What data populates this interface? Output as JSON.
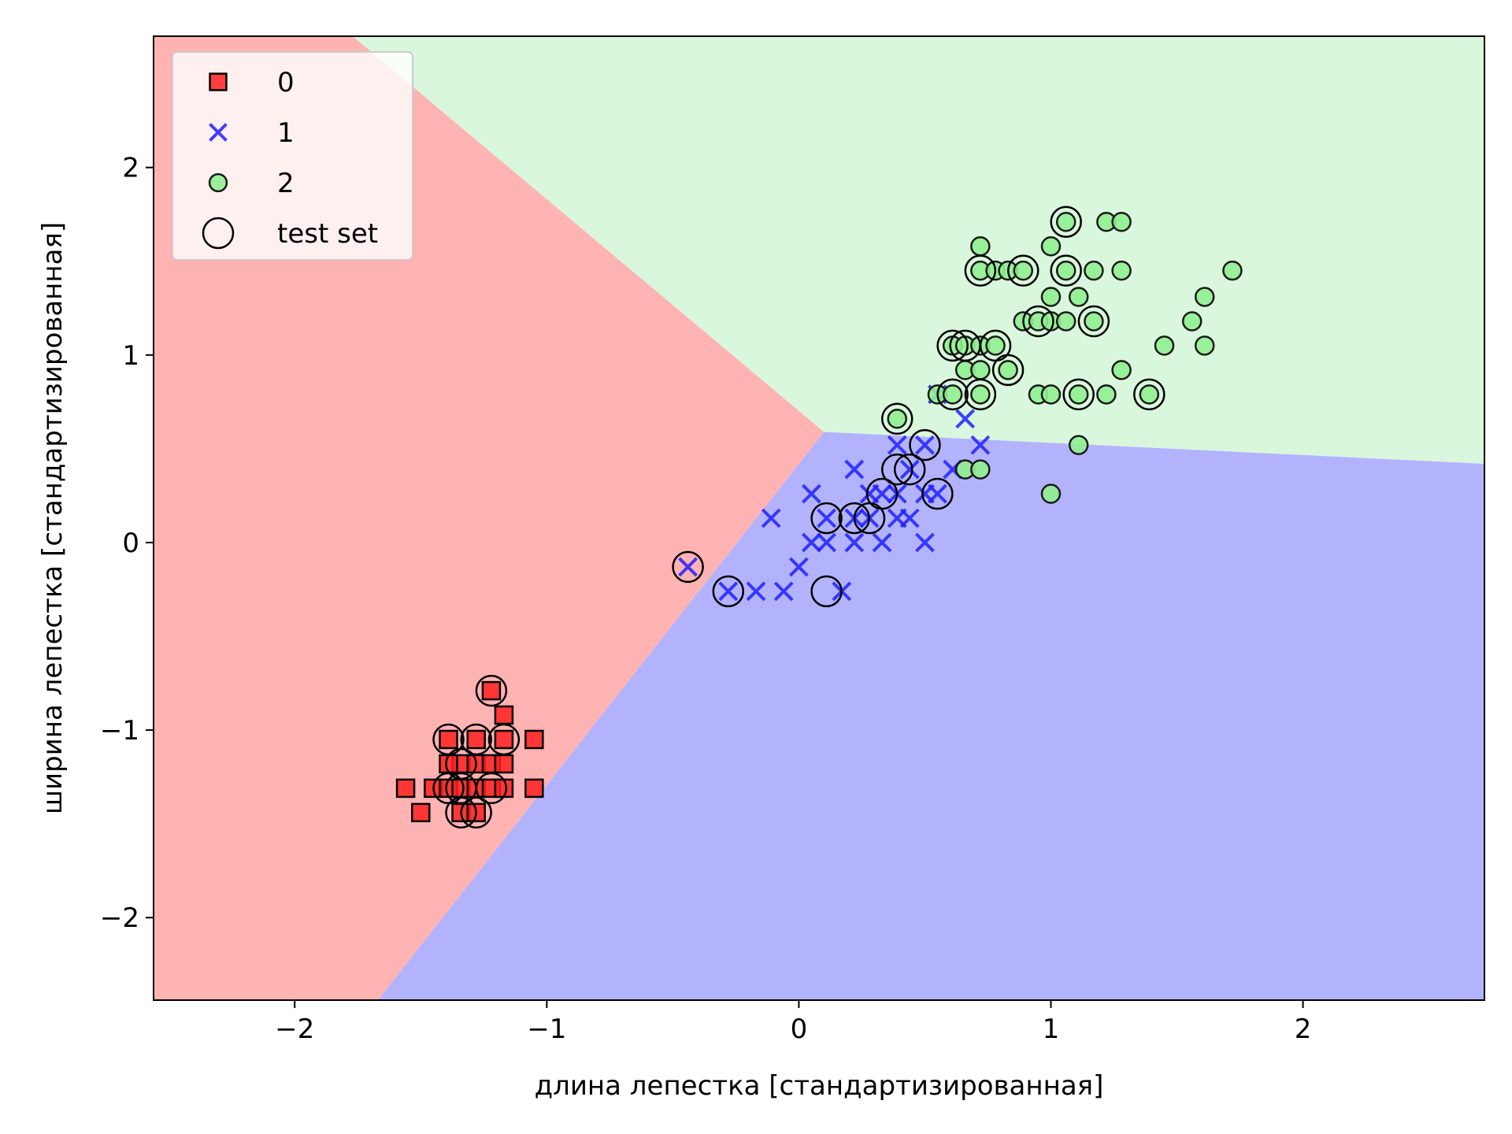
{
  "chart_data": {
    "type": "scatter",
    "title": "",
    "xlabel": "длина лепестка [стандартизированная]",
    "ylabel": "ширина лепестка [стандартизированная]",
    "xlim": [
      -2.56,
      2.72
    ],
    "ylim": [
      -2.44,
      2.7
    ],
    "xticks": [
      -2,
      -1,
      0,
      1,
      2
    ],
    "yticks": [
      -2,
      -1,
      0,
      1,
      2
    ],
    "xtick_labels": [
      "−2",
      "−1",
      "0",
      "1",
      "2"
    ],
    "ytick_labels": [
      "−2",
      "−1",
      "0",
      "1",
      "2"
    ],
    "grid": false,
    "legend_position": "upper-left",
    "decision_regions": [
      {
        "class": "0",
        "color": "#ffb3b3",
        "polygon": [
          [
            -2.56,
            2.7
          ],
          [
            -1.77,
            2.7
          ],
          [
            0.1,
            0.59
          ],
          [
            -1.67,
            -2.44
          ],
          [
            -2.56,
            -2.44
          ]
        ]
      },
      {
        "class": "2",
        "color": "#d9f7dc",
        "polygon": [
          [
            -1.77,
            2.7
          ],
          [
            2.72,
            2.7
          ],
          [
            2.72,
            0.42
          ],
          [
            0.1,
            0.59
          ]
        ]
      },
      {
        "class": "1",
        "color": "#b3b3fd",
        "polygon": [
          [
            0.1,
            0.59
          ],
          [
            2.72,
            0.42
          ],
          [
            2.72,
            -2.44
          ],
          [
            -1.67,
            -2.44
          ]
        ]
      }
    ],
    "series": [
      {
        "name": "0",
        "marker": "square",
        "color": "#ff2020",
        "points": [
          [
            -1.39,
            -1.05
          ],
          [
            -1.28,
            -1.05
          ],
          [
            -1.17,
            -1.05
          ],
          [
            -1.05,
            -1.05
          ],
          [
            -1.22,
            -0.79
          ],
          [
            -1.17,
            -0.92
          ],
          [
            -1.34,
            -1.18
          ],
          [
            -1.39,
            -1.18
          ],
          [
            -1.28,
            -1.18
          ],
          [
            -1.22,
            -1.18
          ],
          [
            -1.17,
            -1.18
          ],
          [
            -1.56,
            -1.31
          ],
          [
            -1.45,
            -1.31
          ],
          [
            -1.39,
            -1.31
          ],
          [
            -1.34,
            -1.31
          ],
          [
            -1.28,
            -1.31
          ],
          [
            -1.22,
            -1.31
          ],
          [
            -1.17,
            -1.31
          ],
          [
            -1.05,
            -1.31
          ],
          [
            -1.5,
            -1.44
          ],
          [
            -1.34,
            -1.44
          ],
          [
            -1.28,
            -1.44
          ]
        ]
      },
      {
        "name": "1",
        "marker": "x",
        "color": "#2020ff",
        "points": [
          [
            -0.44,
            -0.13
          ],
          [
            -0.28,
            -0.26
          ],
          [
            -0.17,
            -0.26
          ],
          [
            -0.06,
            -0.26
          ],
          [
            0.17,
            -0.26
          ],
          [
            -0.11,
            0.13
          ],
          [
            0.0,
            -0.13
          ],
          [
            0.05,
            0.0
          ],
          [
            0.05,
            0.26
          ],
          [
            0.11,
            0.0
          ],
          [
            0.11,
            0.13
          ],
          [
            0.22,
            0.0
          ],
          [
            0.22,
            0.13
          ],
          [
            0.22,
            0.39
          ],
          [
            0.28,
            0.13
          ],
          [
            0.33,
            0.0
          ],
          [
            0.39,
            0.13
          ],
          [
            0.39,
            0.26
          ],
          [
            0.39,
            0.52
          ],
          [
            0.44,
            0.13
          ],
          [
            0.44,
            0.39
          ],
          [
            0.5,
            0.0
          ],
          [
            0.5,
            0.26
          ],
          [
            0.5,
            0.52
          ],
          [
            0.55,
            0.26
          ],
          [
            0.55,
            0.79
          ],
          [
            0.61,
            0.39
          ],
          [
            0.66,
            0.66
          ],
          [
            0.72,
            0.52
          ],
          [
            0.33,
            0.26
          ],
          [
            0.28,
            0.26
          ]
        ]
      },
      {
        "name": "2",
        "marker": "circle",
        "color": "#90ee90",
        "points": [
          [
            0.39,
            0.66
          ],
          [
            0.55,
            0.79
          ],
          [
            0.61,
            0.79
          ],
          [
            0.61,
            1.05
          ],
          [
            0.66,
            1.05
          ],
          [
            0.72,
            1.05
          ],
          [
            0.66,
            0.92
          ],
          [
            0.72,
            0.92
          ],
          [
            0.66,
            0.39
          ],
          [
            0.72,
            0.39
          ],
          [
            0.72,
            0.79
          ],
          [
            0.72,
            1.45
          ],
          [
            0.72,
            1.58
          ],
          [
            0.78,
            1.05
          ],
          [
            0.78,
            1.45
          ],
          [
            0.83,
            0.92
          ],
          [
            0.83,
            1.45
          ],
          [
            0.89,
            1.18
          ],
          [
            0.89,
            1.45
          ],
          [
            0.95,
            0.79
          ],
          [
            0.95,
            1.18
          ],
          [
            1.0,
            0.79
          ],
          [
            1.0,
            1.18
          ],
          [
            1.0,
            1.58
          ],
          [
            1.0,
            1.31
          ],
          [
            1.0,
            0.26
          ],
          [
            1.06,
            1.18
          ],
          [
            1.06,
            1.45
          ],
          [
            1.06,
            1.71
          ],
          [
            1.11,
            0.79
          ],
          [
            1.11,
            1.31
          ],
          [
            1.11,
            0.52
          ],
          [
            1.17,
            1.18
          ],
          [
            1.17,
            1.45
          ],
          [
            1.22,
            0.79
          ],
          [
            1.22,
            1.71
          ],
          [
            1.28,
            0.92
          ],
          [
            1.28,
            1.45
          ],
          [
            1.28,
            1.71
          ],
          [
            1.39,
            0.79
          ],
          [
            1.45,
            1.05
          ],
          [
            1.56,
            1.18
          ],
          [
            1.61,
            1.05
          ],
          [
            1.61,
            1.31
          ],
          [
            1.72,
            1.45
          ]
        ]
      }
    ],
    "test_set": {
      "name": "test set",
      "marker": "open-circle",
      "points": [
        [
          -1.22,
          -0.79
        ],
        [
          -1.39,
          -1.05
        ],
        [
          -1.28,
          -1.05
        ],
        [
          -1.17,
          -1.05
        ],
        [
          -1.34,
          -1.18
        ],
        [
          -1.39,
          -1.31
        ],
        [
          -1.34,
          -1.31
        ],
        [
          -1.22,
          -1.31
        ],
        [
          -1.34,
          -1.44
        ],
        [
          -1.28,
          -1.44
        ],
        [
          -0.44,
          -0.13
        ],
        [
          -0.28,
          -0.26
        ],
        [
          0.11,
          -0.26
        ],
        [
          0.11,
          0.13
        ],
        [
          0.22,
          0.13
        ],
        [
          0.28,
          0.13
        ],
        [
          0.33,
          0.26
        ],
        [
          0.39,
          0.39
        ],
        [
          0.44,
          0.39
        ],
        [
          0.5,
          0.52
        ],
        [
          0.55,
          0.26
        ],
        [
          0.39,
          0.66
        ],
        [
          0.61,
          0.79
        ],
        [
          0.61,
          1.05
        ],
        [
          0.66,
          1.05
        ],
        [
          0.72,
          1.45
        ],
        [
          0.72,
          0.79
        ],
        [
          0.78,
          1.05
        ],
        [
          0.83,
          0.92
        ],
        [
          0.89,
          1.45
        ],
        [
          0.95,
          1.18
        ],
        [
          1.06,
          1.45
        ],
        [
          1.06,
          1.71
        ],
        [
          1.11,
          0.79
        ],
        [
          1.17,
          1.18
        ],
        [
          1.39,
          0.79
        ]
      ]
    },
    "legend": [
      {
        "label": "0",
        "marker": "square",
        "color": "#ff2020"
      },
      {
        "label": "1",
        "marker": "x",
        "color": "#2020ff"
      },
      {
        "label": "2",
        "marker": "circle",
        "color": "#90ee90"
      },
      {
        "label": "test set",
        "marker": "open-circle",
        "color": "#000000"
      }
    ]
  }
}
